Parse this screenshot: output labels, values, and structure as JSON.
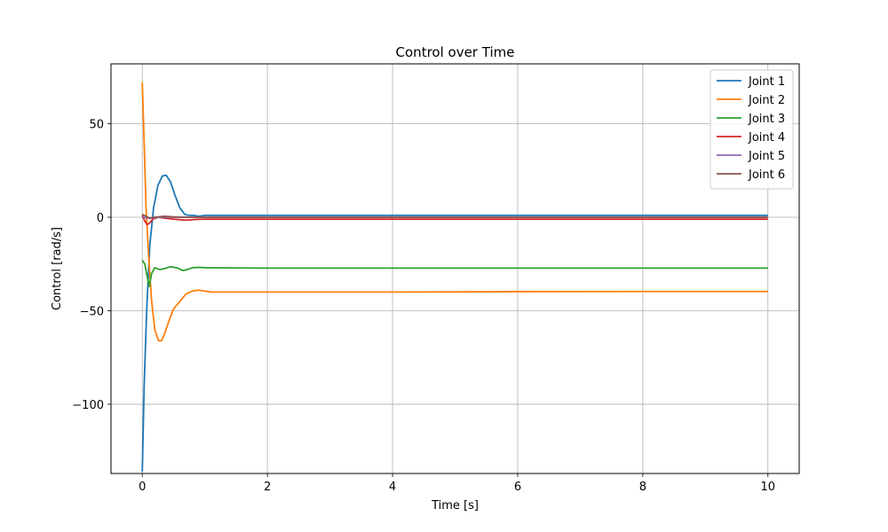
{
  "chart_data": {
    "type": "line",
    "title": "Control over Time",
    "xlabel": "Time [s]",
    "ylabel": "Control [rad/s]",
    "xlim": [
      -0.5,
      10.5
    ],
    "ylim": [
      -137,
      82
    ],
    "xticks": [
      0,
      2,
      4,
      6,
      8,
      10
    ],
    "yticks": [
      -100,
      -50,
      0,
      50
    ],
    "ytick_labels": [
      "−100",
      "−50",
      "0",
      "50"
    ],
    "grid": true,
    "legend_position": "top-right",
    "series": [
      {
        "name": "Joint 1",
        "color": "#1f77b4",
        "points": [
          [
            0,
            -136
          ],
          [
            0.03,
            -90
          ],
          [
            0.07,
            -50
          ],
          [
            0.12,
            -15
          ],
          [
            0.18,
            5
          ],
          [
            0.25,
            17
          ],
          [
            0.32,
            22
          ],
          [
            0.38,
            22.5
          ],
          [
            0.45,
            19
          ],
          [
            0.52,
            12
          ],
          [
            0.6,
            5
          ],
          [
            0.68,
            1.5
          ],
          [
            0.75,
            1
          ],
          [
            0.82,
            1
          ],
          [
            0.9,
            0.5
          ],
          [
            1.0,
            1
          ],
          [
            2,
            1
          ],
          [
            4,
            1
          ],
          [
            6,
            1
          ],
          [
            8,
            1
          ],
          [
            10,
            1
          ]
        ]
      },
      {
        "name": "Joint 2",
        "color": "#ff7f0e",
        "points": [
          [
            0,
            72
          ],
          [
            0.03,
            40
          ],
          [
            0.06,
            5
          ],
          [
            0.1,
            -20
          ],
          [
            0.15,
            -45
          ],
          [
            0.2,
            -60
          ],
          [
            0.26,
            -66
          ],
          [
            0.31,
            -66
          ],
          [
            0.36,
            -62
          ],
          [
            0.42,
            -56
          ],
          [
            0.5,
            -49
          ],
          [
            0.6,
            -45
          ],
          [
            0.7,
            -41
          ],
          [
            0.8,
            -39.5
          ],
          [
            0.9,
            -39
          ],
          [
            1.0,
            -39.5
          ],
          [
            1.1,
            -40
          ],
          [
            2,
            -40
          ],
          [
            4,
            -40
          ],
          [
            6,
            -39.8
          ],
          [
            8,
            -39.7
          ],
          [
            10,
            -39.7
          ]
        ]
      },
      {
        "name": "Joint 3",
        "color": "#2ca02c",
        "points": [
          [
            0,
            -23
          ],
          [
            0.04,
            -25
          ],
          [
            0.08,
            -32
          ],
          [
            0.11,
            -37
          ],
          [
            0.15,
            -30
          ],
          [
            0.2,
            -27
          ],
          [
            0.28,
            -28
          ],
          [
            0.35,
            -27.5
          ],
          [
            0.45,
            -26.5
          ],
          [
            0.55,
            -27
          ],
          [
            0.65,
            -28.5
          ],
          [
            0.72,
            -28
          ],
          [
            0.8,
            -27
          ],
          [
            0.9,
            -26.8
          ],
          [
            1.0,
            -27
          ],
          [
            2,
            -27.2
          ],
          [
            4,
            -27.2
          ],
          [
            6,
            -27.2
          ],
          [
            8,
            -27.2
          ],
          [
            10,
            -27.2
          ]
        ]
      },
      {
        "name": "Joint 4",
        "color": "#d62728",
        "points": [
          [
            0,
            1
          ],
          [
            0.04,
            -2
          ],
          [
            0.08,
            -4
          ],
          [
            0.12,
            -3
          ],
          [
            0.17,
            -1
          ],
          [
            0.25,
            0
          ],
          [
            0.35,
            -0.5
          ],
          [
            0.5,
            -1
          ],
          [
            0.65,
            -1.5
          ],
          [
            0.75,
            -1.5
          ],
          [
            0.85,
            -1.2
          ],
          [
            1.0,
            -1
          ],
          [
            2,
            -1
          ],
          [
            4,
            -1
          ],
          [
            6,
            -1
          ],
          [
            8,
            -1
          ],
          [
            10,
            -1
          ]
        ]
      },
      {
        "name": "Joint 5",
        "color": "#9467bd",
        "points": [
          [
            0,
            0
          ],
          [
            0.1,
            -0.5
          ],
          [
            0.3,
            0
          ],
          [
            0.6,
            0
          ],
          [
            1,
            0
          ],
          [
            4,
            0
          ],
          [
            10,
            0
          ]
        ]
      },
      {
        "name": "Joint 6",
        "color": "#8c564b",
        "points": [
          [
            0,
            1.5
          ],
          [
            0.06,
            0.5
          ],
          [
            0.12,
            -0.5
          ],
          [
            0.2,
            0
          ],
          [
            0.35,
            0.5
          ],
          [
            0.6,
            0
          ],
          [
            1,
            0
          ],
          [
            4,
            0
          ],
          [
            10,
            0
          ]
        ]
      }
    ]
  }
}
